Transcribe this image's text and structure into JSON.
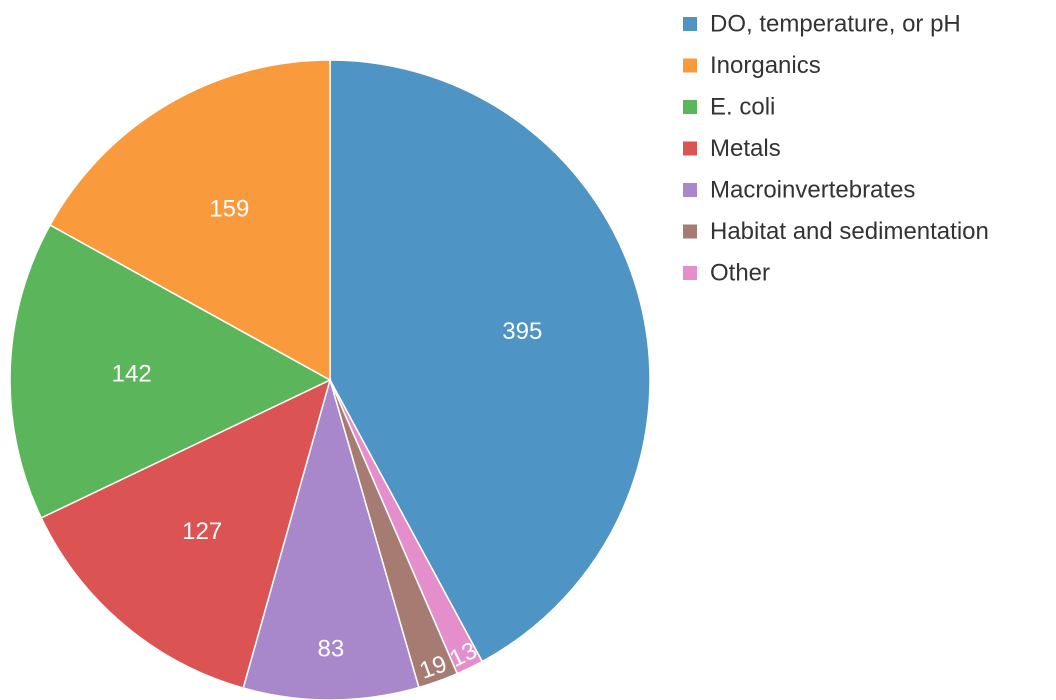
{
  "chart_data": {
    "type": "pie",
    "title": "",
    "legend_position": "top-right",
    "start": "12 o'clock, clockwise",
    "slices": [
      {
        "label": "DO, temperature, or pH",
        "value": 395,
        "color": "#4e94c4"
      },
      {
        "label": "Inorganics",
        "value": 159,
        "color": "#f99a3d"
      },
      {
        "label": "E. coli",
        "value": 142,
        "color": "#5bb55a"
      },
      {
        "label": "Metals",
        "value": 127,
        "color": "#dc5353"
      },
      {
        "label": "Macroinvertebrates",
        "value": 83,
        "color": "#a987cb"
      },
      {
        "label": "Habitat and sedimentation",
        "value": 19,
        "color": "#a57b72"
      },
      {
        "label": "Other",
        "value": 13,
        "color": "#e48fcb"
      }
    ],
    "clockwise_order": [
      "DO, temperature, or pH",
      "Other",
      "Habitat and sedimentation",
      "Macroinvertebrates",
      "Metals",
      "E. coli",
      "Inorganics"
    ],
    "label_color": "#ffffff",
    "legend_text_color": "#333333"
  }
}
